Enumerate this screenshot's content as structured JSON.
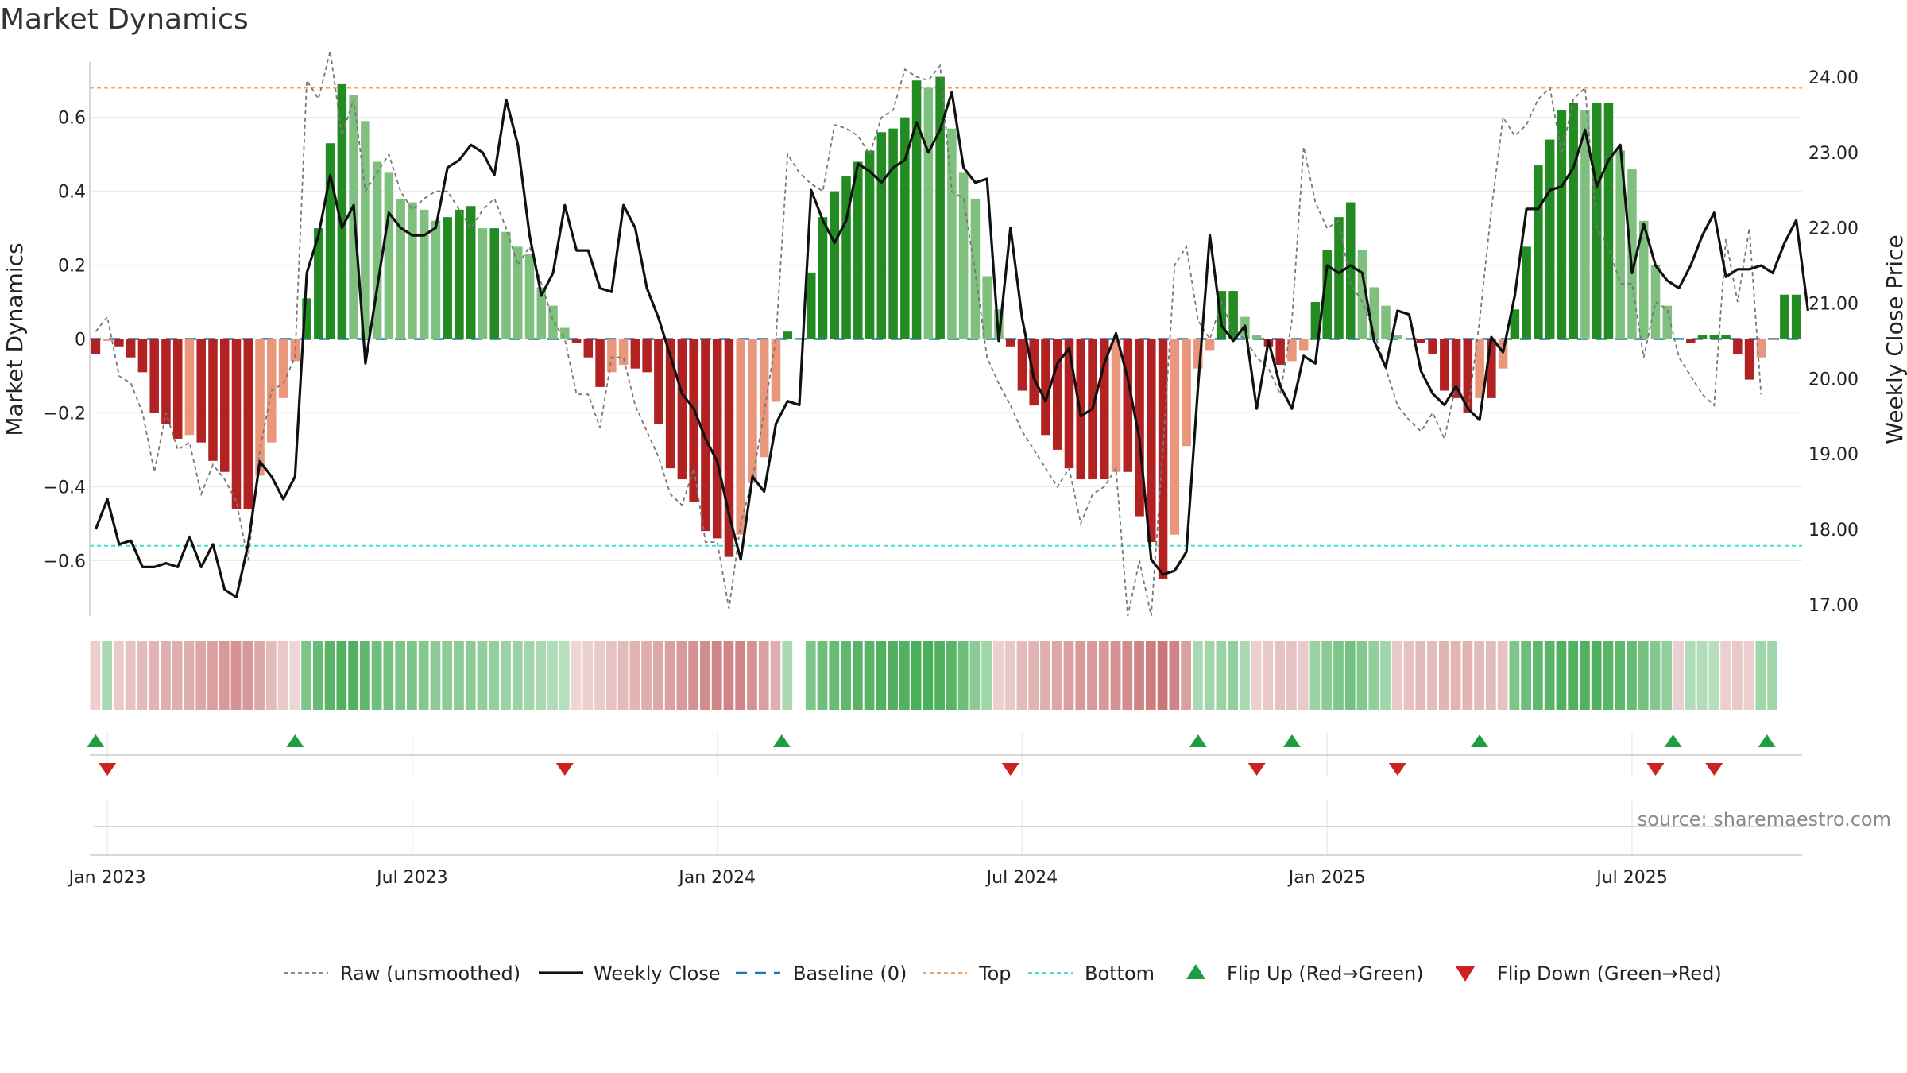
{
  "title": "Market Dynamics",
  "source": "source: sharemaestro.com",
  "colors": {
    "strong_green": "#228b22",
    "light_green": "#7fc07f",
    "strong_red": "#b22222",
    "light_red": "#e9967a",
    "top_line": "#f4a460",
    "bottom_line": "#40e0d0",
    "baseline": "#1f77b4",
    "flip_up": "#1e9e3e",
    "flip_down": "#cc2222"
  },
  "chart_data": {
    "type": "bar",
    "title": "Market Dynamics",
    "ylabel_left": "Market Dynamics",
    "ylabel_right": "Weekly Close Price",
    "ylim_left": [
      -0.75,
      0.75
    ],
    "ylim_right": [
      16.85,
      24.2
    ],
    "y_ticks_left": [
      -0.6,
      -0.4,
      -0.2,
      0,
      0.2,
      0.4,
      0.6
    ],
    "y_tick_labels_left": [
      "−0.6",
      "−0.4",
      "−0.2",
      "0",
      "0.2",
      "0.4",
      "0.6"
    ],
    "y_ticks_right": [
      "17.00",
      "18.00",
      "19.00",
      "20.00",
      "21.00",
      "22.00",
      "23.00",
      "24.00"
    ],
    "x_ticks": [
      {
        "label": "Jan 2023",
        "week": 1
      },
      {
        "label": "Jul 2023",
        "week": 27
      },
      {
        "label": "Jan 2024",
        "week": 53
      },
      {
        "label": "Jul 2024",
        "week": 79
      },
      {
        "label": "Jan 2025",
        "week": 105
      },
      {
        "label": "Jul 2025",
        "week": 131
      }
    ],
    "top_level": 0.68,
    "bottom_level": -0.56,
    "baseline": 0,
    "dynamics": [
      -0.04,
      -0.005,
      -0.02,
      -0.05,
      -0.09,
      -0.2,
      -0.23,
      -0.27,
      -0.26,
      -0.28,
      -0.33,
      -0.36,
      -0.46,
      -0.46,
      -0.37,
      -0.28,
      -0.16,
      -0.06,
      0.11,
      0.3,
      0.53,
      0.69,
      0.66,
      0.59,
      0.48,
      0.45,
      0.38,
      0.37,
      0.35,
      0.32,
      0.33,
      0.35,
      0.36,
      0.3,
      0.3,
      0.29,
      0.25,
      0.23,
      0.14,
      0.09,
      0.03,
      -0.01,
      -0.05,
      -0.13,
      -0.09,
      -0.07,
      -0.08,
      -0.09,
      -0.23,
      -0.35,
      -0.38,
      -0.44,
      -0.52,
      -0.54,
      -0.59,
      -0.53,
      -0.39,
      -0.32,
      -0.17,
      0.02,
      0.0,
      0.18,
      0.33,
      0.4,
      0.44,
      0.48,
      0.51,
      0.56,
      0.57,
      0.6,
      0.7,
      0.68,
      0.71,
      0.57,
      0.45,
      0.38,
      0.17,
      0.08,
      -0.02,
      -0.14,
      -0.18,
      -0.26,
      -0.3,
      -0.35,
      -0.38,
      -0.38,
      -0.38,
      -0.36,
      -0.36,
      -0.48,
      -0.55,
      -0.65,
      -0.53,
      -0.29,
      -0.08,
      -0.03,
      0.13,
      0.13,
      0.06,
      0.01,
      -0.02,
      -0.07,
      -0.06,
      -0.03,
      0.1,
      0.24,
      0.33,
      0.37,
      0.24,
      0.14,
      0.09,
      0.01,
      0.0,
      -0.01,
      -0.04,
      -0.14,
      -0.16,
      -0.2,
      -0.16,
      -0.16,
      -0.08,
      0.08,
      0.25,
      0.47,
      0.54,
      0.62,
      0.64,
      0.62,
      0.64,
      0.64,
      0.51,
      0.46,
      0.32,
      0.2,
      0.09,
      0.0,
      -0.01,
      0.01,
      0.01,
      0.01,
      -0.04,
      -0.11,
      -0.05,
      -0.003,
      0.12,
      0.12
    ],
    "raw": [
      0.02,
      0.06,
      -0.1,
      -0.12,
      -0.2,
      -0.36,
      -0.2,
      -0.3,
      -0.28,
      -0.42,
      -0.34,
      -0.38,
      -0.44,
      -0.6,
      -0.3,
      -0.14,
      -0.12,
      -0.05,
      0.7,
      0.65,
      0.78,
      0.55,
      0.65,
      0.4,
      0.45,
      0.5,
      0.4,
      0.35,
      0.38,
      0.4,
      0.4,
      0.35,
      0.3,
      0.35,
      0.38,
      0.3,
      0.2,
      0.25,
      0.15,
      0.05,
      0.0,
      -0.15,
      -0.15,
      -0.24,
      -0.05,
      -0.05,
      -0.18,
      -0.25,
      -0.32,
      -0.42,
      -0.45,
      -0.35,
      -0.55,
      -0.55,
      -0.73,
      -0.5,
      -0.38,
      -0.2,
      0.0,
      0.5,
      0.45,
      0.42,
      0.4,
      0.58,
      0.57,
      0.55,
      0.5,
      0.6,
      0.62,
      0.73,
      0.71,
      0.7,
      0.74,
      0.4,
      0.38,
      0.18,
      -0.05,
      -0.12,
      -0.18,
      -0.25,
      -0.3,
      -0.35,
      -0.4,
      -0.35,
      -0.5,
      -0.42,
      -0.4,
      -0.35,
      -0.75,
      -0.6,
      -0.75,
      -0.3,
      0.2,
      0.25,
      0.05,
      0.0,
      0.1,
      0.02,
      0.0,
      -0.05,
      -0.08,
      -0.15,
      0.05,
      0.52,
      0.37,
      0.3,
      0.32,
      0.15,
      0.1,
      0.02,
      -0.08,
      -0.18,
      -0.22,
      -0.25,
      -0.2,
      -0.27,
      -0.12,
      -0.2,
      0.05,
      0.35,
      0.6,
      0.55,
      0.58,
      0.65,
      0.68,
      0.5,
      0.65,
      0.68,
      0.3,
      0.25,
      0.15,
      0.15,
      -0.05,
      0.1,
      0.08,
      -0.05,
      -0.1,
      -0.15,
      -0.18,
      0.27,
      0.1,
      0.3,
      -0.15
    ],
    "close": [
      18.0,
      18.4,
      17.8,
      17.85,
      17.5,
      17.5,
      17.55,
      17.5,
      17.9,
      17.5,
      17.8,
      17.2,
      17.1,
      17.8,
      18.9,
      18.7,
      18.4,
      18.7,
      21.4,
      21.9,
      22.7,
      22.0,
      22.3,
      20.2,
      21.2,
      22.2,
      22.0,
      21.9,
      21.9,
      22.0,
      22.8,
      22.9,
      23.1,
      23.0,
      22.7,
      23.7,
      23.1,
      21.9,
      21.1,
      21.4,
      22.3,
      21.7,
      21.7,
      21.2,
      21.15,
      22.3,
      22.0,
      21.2,
      20.8,
      20.3,
      19.8,
      19.6,
      19.2,
      18.9,
      18.2,
      17.6,
      18.7,
      18.5,
      19.4,
      19.7,
      19.65,
      22.5,
      22.1,
      21.8,
      22.1,
      22.85,
      22.75,
      22.6,
      22.8,
      22.9,
      23.4,
      23.0,
      23.3,
      23.8,
      22.8,
      22.6,
      22.65,
      20.5,
      22.0,
      20.8,
      20.0,
      19.7,
      20.2,
      20.4,
      19.5,
      19.6,
      20.2,
      20.6,
      20.0,
      19.2,
      17.6,
      17.4,
      17.45,
      17.7,
      19.9,
      21.9,
      20.7,
      20.5,
      20.7,
      19.6,
      20.5,
      19.9,
      19.6,
      20.3,
      20.2,
      21.5,
      21.4,
      21.5,
      21.4,
      20.5,
      20.15,
      20.9,
      20.85,
      20.1,
      19.8,
      19.65,
      19.9,
      19.6,
      19.45,
      20.55,
      20.35,
      21.1,
      22.25,
      22.25,
      22.5,
      22.55,
      22.8,
      23.3,
      22.55,
      22.9,
      23.1,
      21.4,
      22.05,
      21.5,
      21.3,
      21.2,
      21.5,
      21.9,
      22.2,
      21.35,
      21.45,
      21.45,
      21.5,
      21.4,
      21.8,
      22.1,
      20.9
    ],
    "heat_strip": [
      -0.15,
      0.3,
      -0.2,
      -0.25,
      -0.3,
      -0.35,
      -0.4,
      -0.4,
      -0.4,
      -0.45,
      -0.5,
      -0.55,
      -0.6,
      -0.55,
      -0.45,
      -0.3,
      -0.2,
      -0.1,
      0.6,
      0.75,
      0.85,
      0.9,
      0.9,
      0.8,
      0.7,
      0.65,
      0.6,
      0.6,
      0.55,
      0.5,
      0.5,
      0.5,
      0.5,
      0.45,
      0.45,
      0.4,
      0.4,
      0.35,
      0.3,
      0.25,
      0.2,
      -0.1,
      -0.15,
      -0.2,
      -0.25,
      -0.3,
      -0.35,
      -0.4,
      -0.45,
      -0.5,
      -0.55,
      -0.6,
      -0.65,
      -0.7,
      -0.7,
      -0.7,
      -0.6,
      -0.5,
      -0.4,
      0.3,
      null,
      0.6,
      0.7,
      0.75,
      0.8,
      0.85,
      0.85,
      0.9,
      0.9,
      0.9,
      0.95,
      0.95,
      0.9,
      0.85,
      0.7,
      0.5,
      0.35,
      -0.15,
      -0.2,
      -0.3,
      -0.35,
      -0.4,
      -0.45,
      -0.5,
      -0.55,
      -0.55,
      -0.55,
      -0.6,
      -0.65,
      -0.7,
      -0.75,
      -0.8,
      -0.7,
      -0.5,
      0.3,
      0.35,
      0.4,
      0.45,
      0.3,
      -0.15,
      -0.2,
      -0.25,
      -0.25,
      -0.2,
      0.4,
      0.5,
      0.6,
      0.65,
      0.55,
      0.45,
      0.35,
      -0.2,
      -0.25,
      -0.3,
      -0.3,
      -0.35,
      -0.35,
      -0.35,
      -0.3,
      -0.3,
      -0.25,
      0.6,
      0.7,
      0.8,
      0.85,
      0.9,
      0.9,
      0.9,
      0.9,
      0.85,
      0.8,
      0.75,
      0.65,
      0.55,
      0.45,
      -0.15,
      0.25,
      0.25,
      0.2,
      -0.15,
      -0.2,
      -0.15,
      0.35,
      0.35
    ],
    "flip_up_weeks": [
      0.0,
      17.0,
      58.5,
      94.0,
      102.0,
      118.0,
      134.5,
      142.5
    ],
    "flip_down_weeks": [
      1.0,
      40.0,
      78.0,
      99.0,
      111.0,
      133.0,
      138.0
    ],
    "legend": [
      "Raw (unsmoothed)",
      "Weekly Close",
      "Baseline (0)",
      "Top",
      "Bottom",
      "Flip Up (Red→Green)",
      "Flip Down (Green→Red)"
    ]
  }
}
